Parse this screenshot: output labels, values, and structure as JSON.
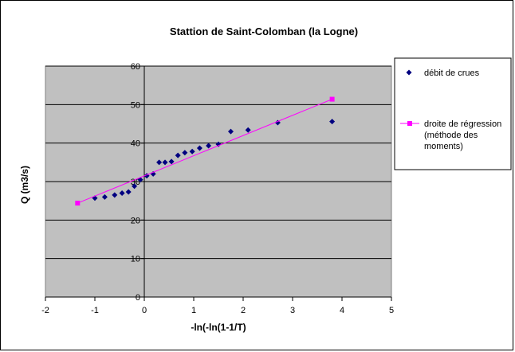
{
  "chart_data": {
    "type": "scatter",
    "title": "Stattion de Saint-Colomban  (la Logne)",
    "xlabel": "-ln(-ln(1-1/T)",
    "ylabel": "Q (m3/s)",
    "xlim": [
      -2,
      5
    ],
    "ylim": [
      0,
      60
    ],
    "x_ticks": [
      "-2",
      "-1",
      "0",
      "1",
      "2",
      "3",
      "4",
      "5"
    ],
    "y_ticks": [
      "0",
      "10",
      "20",
      "30",
      "40",
      "50",
      "60"
    ],
    "grid": "horizontal",
    "plot_background": "#c0c0c0",
    "legend_position": "right",
    "series": [
      {
        "name": "débit de crues",
        "kind": "points",
        "marker": "diamond",
        "color": "#000080",
        "x": [
          -1.0,
          -0.8,
          -0.6,
          -0.45,
          -0.32,
          -0.2,
          -0.08,
          0.05,
          0.18,
          0.3,
          0.42,
          0.55,
          0.68,
          0.82,
          0.97,
          1.12,
          1.3,
          1.5,
          1.75,
          2.1,
          2.7,
          3.8
        ],
        "y": [
          25.7,
          26.0,
          26.5,
          27.0,
          27.3,
          28.8,
          30.5,
          31.5,
          32.0,
          35.0,
          35.0,
          35.2,
          36.8,
          37.5,
          37.8,
          38.7,
          39.3,
          39.7,
          43.0,
          43.4,
          45.3,
          45.6
        ]
      },
      {
        "name": "droite de régression (méthode des moments)",
        "legend_lines": [
          "droite de régression",
          "(méthode des",
          "moments)"
        ],
        "kind": "line",
        "marker": "square",
        "color": "#ff00ff",
        "x": [
          -1.35,
          3.8
        ],
        "y": [
          24.4,
          51.4
        ]
      }
    ]
  }
}
